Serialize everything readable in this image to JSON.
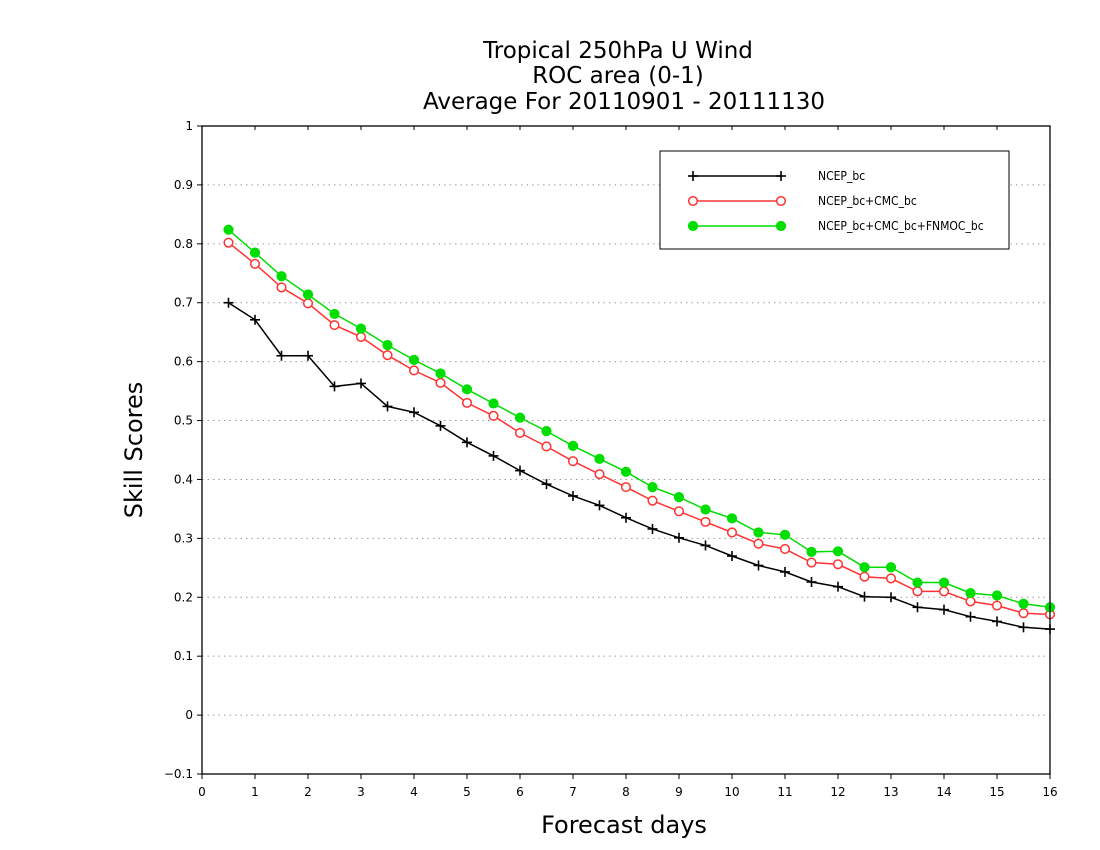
{
  "chart_data": {
    "type": "line",
    "title_lines": [
      "Tropical 250hPa U Wind",
      "ROC area (0-1)",
      "Average For 20110901 - 20111130"
    ],
    "xlabel": "Forecast days",
    "ylabel": "Skill Scores",
    "xlim": [
      0,
      16
    ],
    "ylim": [
      -0.1,
      1
    ],
    "xticks": [
      "0",
      "1",
      "2",
      "3",
      "4",
      "5",
      "6",
      "7",
      "8",
      "9",
      "10",
      "11",
      "12",
      "13",
      "14",
      "15",
      "16"
    ],
    "yticks": [
      "−0.1",
      "0",
      "0.1",
      "0.2",
      "0.3",
      "0.4",
      "0.5",
      "0.6",
      "0.7",
      "0.8",
      "0.9",
      "1"
    ],
    "grid": true,
    "legend_position": "top-right",
    "x": [
      0.5,
      1,
      1.5,
      2,
      2.5,
      3,
      3.5,
      4,
      4.5,
      5,
      5.5,
      6,
      6.5,
      7,
      7.5,
      8,
      8.5,
      9,
      9.5,
      10,
      10.5,
      11,
      11.5,
      12,
      12.5,
      13,
      13.5,
      14,
      14.5,
      15,
      15.5,
      16
    ],
    "series": [
      {
        "name": "NCEP_bc",
        "color": "#000000",
        "marker": "plus",
        "values": [
          0.7,
          0.671,
          0.61,
          0.61,
          0.558,
          0.563,
          0.524,
          0.514,
          0.491,
          0.463,
          0.44,
          0.415,
          0.392,
          0.372,
          0.356,
          0.335,
          0.316,
          0.301,
          0.288,
          0.27,
          0.254,
          0.243,
          0.226,
          0.218,
          0.201,
          0.2,
          0.183,
          0.179,
          0.167,
          0.159,
          0.149,
          0.146
        ]
      },
      {
        "name": "NCEP_bc+CMC_bc",
        "color": "#ff3333",
        "marker": "open-circle",
        "values": [
          0.802,
          0.766,
          0.726,
          0.699,
          0.662,
          0.642,
          0.611,
          0.585,
          0.564,
          0.53,
          0.508,
          0.479,
          0.456,
          0.431,
          0.409,
          0.387,
          0.364,
          0.346,
          0.328,
          0.31,
          0.291,
          0.282,
          0.259,
          0.256,
          0.235,
          0.232,
          0.21,
          0.21,
          0.193,
          0.186,
          0.173,
          0.171
        ]
      },
      {
        "name": "NCEP_bc+CMC_bc+FNMOC_bc",
        "color": "#00dd00",
        "marker": "filled-circle",
        "values": [
          0.824,
          0.785,
          0.745,
          0.714,
          0.681,
          0.656,
          0.628,
          0.603,
          0.58,
          0.553,
          0.529,
          0.505,
          0.482,
          0.457,
          0.435,
          0.413,
          0.387,
          0.37,
          0.349,
          0.334,
          0.31,
          0.306,
          0.277,
          0.278,
          0.251,
          0.251,
          0.225,
          0.225,
          0.207,
          0.203,
          0.189,
          0.183
        ]
      }
    ]
  }
}
